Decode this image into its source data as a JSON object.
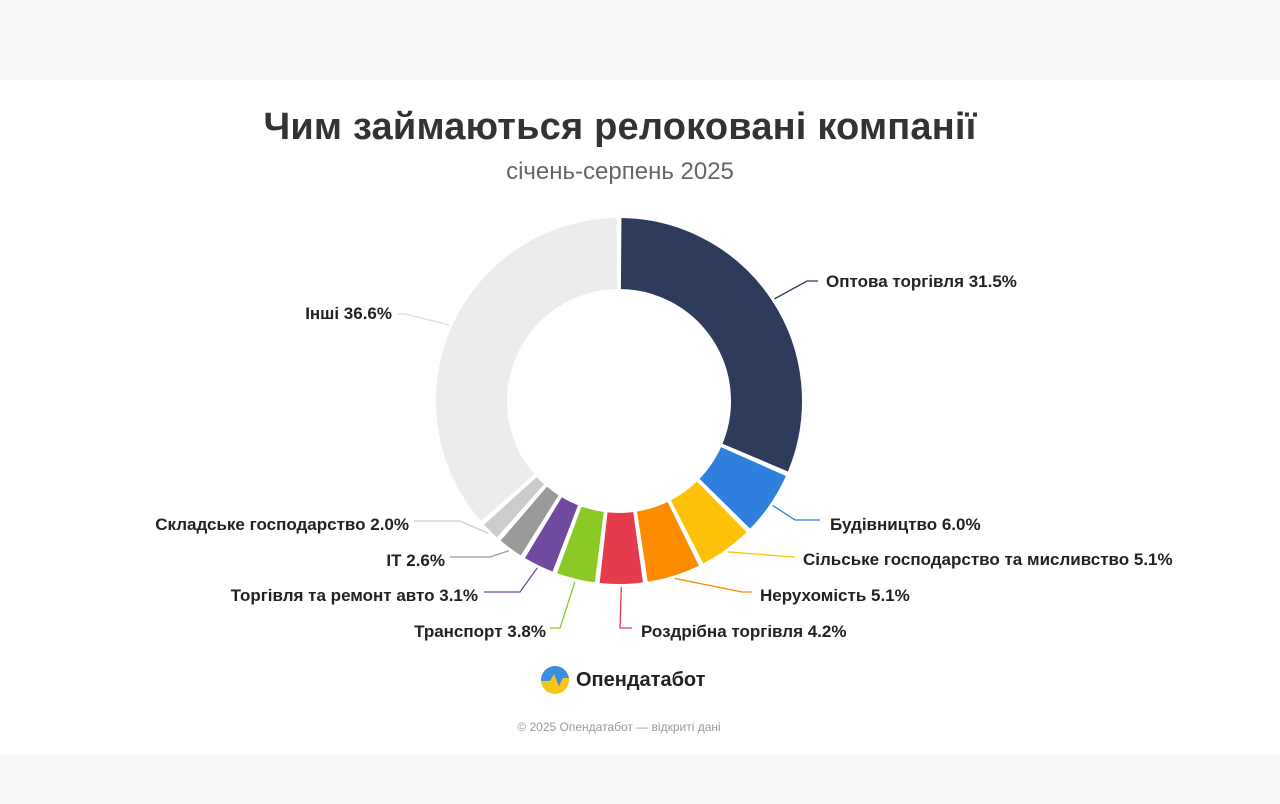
{
  "header": {
    "title": "Чим займаються релоковані компанії",
    "subtitle": "січень-серпень 2025"
  },
  "chart_data": {
    "type": "pie",
    "variant": "donut",
    "title": "Чим займаються релоковані компанії",
    "subtitle": "січень-серпень 2025",
    "unit": "%",
    "slices": [
      {
        "label": "Оптова торгівля",
        "value": 31.5,
        "display": "Оптова торгівля 31.5%",
        "color": "#2f3b5c"
      },
      {
        "label": "Будівництво",
        "value": 6.0,
        "display": "Будівництво 6.0%",
        "color": "#2f80dd"
      },
      {
        "label": "Сільське господарство та мисливство",
        "value": 5.1,
        "display": "Сільське господарство та мисливство 5.1%",
        "color": "#ffc107"
      },
      {
        "label": "Нерухомість",
        "value": 5.1,
        "display": "Нерухомість 5.1%",
        "color": "#fb8c00"
      },
      {
        "label": "Роздрібна торгівля",
        "value": 4.2,
        "display": "Роздрібна торгівля 4.2%",
        "color": "#e53b4c"
      },
      {
        "label": "Транспорт",
        "value": 3.8,
        "display": "Транспорт 3.8%",
        "color": "#8ac926"
      },
      {
        "label": "Торгівля та ремонт авто",
        "value": 3.1,
        "display": "Торгівля та ремонт авто 3.1%",
        "color": "#6f4a9e"
      },
      {
        "label": "IT",
        "value": 2.6,
        "display": "IT 2.6%",
        "color": "#9a9a9a"
      },
      {
        "label": "Складське господарство",
        "value": 2.0,
        "display": "Складське господарство 2.0%",
        "color": "#cccccc"
      },
      {
        "label": "Інші",
        "value": 36.6,
        "display": "Інші 36.6%",
        "color": "#ececec"
      }
    ]
  },
  "brand": {
    "name": "Опендатабот",
    "logo_icon": "opendatabot-logo-icon"
  },
  "footer": {
    "text": "© 2025 Опендатабот — відкриті дані"
  }
}
